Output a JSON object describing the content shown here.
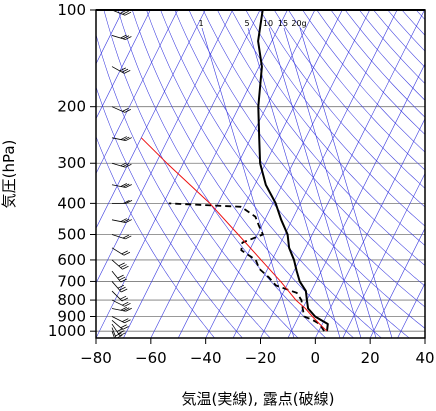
{
  "chart_data": {
    "type": "line",
    "title": "",
    "xlabel": "気温(実線), 露点(破線)",
    "ylabel": "気圧(hPa)",
    "xlim": [
      -80,
      40
    ],
    "ylim": [
      1050,
      100
    ],
    "y_scale": "log",
    "skew": "isotherms slanted",
    "x_ticks": [
      "−80",
      "−60",
      "−40",
      "−20",
      "0",
      "20",
      "40"
    ],
    "y_ticks": [
      "100",
      "200",
      "300",
      "400",
      "500",
      "600",
      "700",
      "800",
      "900",
      "1000"
    ],
    "mixing_ratio_labels": [
      "1",
      "5",
      "10",
      "15",
      "20g"
    ],
    "grid": true,
    "series": [
      {
        "style": "solid-black",
        "points": [
          {
            "p": 1000,
            "t": 3
          },
          {
            "p": 950,
            "t": 2
          },
          {
            "p": 925,
            "t": -1
          },
          {
            "p": 900,
            "t": -4
          },
          {
            "p": 850,
            "t": -8
          },
          {
            "p": 800,
            "t": -10
          },
          {
            "p": 750,
            "t": -12
          },
          {
            "p": 700,
            "t": -16
          },
          {
            "p": 650,
            "t": -19
          },
          {
            "p": 600,
            "t": -22
          },
          {
            "p": 550,
            "t": -26
          },
          {
            "p": 500,
            "t": -29
          },
          {
            "p": 450,
            "t": -34
          },
          {
            "p": 400,
            "t": -39
          },
          {
            "p": 350,
            "t": -46
          },
          {
            "p": 300,
            "t": -52
          },
          {
            "p": 250,
            "t": -57
          },
          {
            "p": 200,
            "t": -63
          },
          {
            "p": 150,
            "t": -69
          },
          {
            "p": 125,
            "t": -75
          },
          {
            "p": 100,
            "t": -79
          }
        ]
      },
      {
        "style": "dashed-black",
        "points": [
          {
            "p": 1000,
            "t": 2
          },
          {
            "p": 950,
            "t": -1
          },
          {
            "p": 925,
            "t": -4
          },
          {
            "p": 900,
            "t": -8
          },
          {
            "p": 850,
            "t": -10
          },
          {
            "p": 800,
            "t": -12
          },
          {
            "p": 760,
            "t": -15
          },
          {
            "p": 720,
            "t": -24
          },
          {
            "p": 680,
            "t": -28
          },
          {
            "p": 640,
            "t": -33
          },
          {
            "p": 600,
            "t": -36
          },
          {
            "p": 560,
            "t": -43
          },
          {
            "p": 530,
            "t": -44
          },
          {
            "p": 500,
            "t": -38
          },
          {
            "p": 470,
            "t": -41
          },
          {
            "p": 440,
            "t": -44
          },
          {
            "p": 410,
            "t": -51
          },
          {
            "p": 400,
            "t": -78
          }
        ]
      },
      {
        "style": "solid-red",
        "points": [
          {
            "p": 1000,
            "t": 3
          },
          {
            "p": 950,
            "t": -1
          },
          {
            "p": 900,
            "t": -5
          },
          {
            "p": 850,
            "t": -9
          },
          {
            "p": 800,
            "t": -14
          },
          {
            "p": 700,
            "t": -23
          },
          {
            "p": 600,
            "t": -34
          },
          {
            "p": 500,
            "t": -47
          },
          {
            "p": 400,
            "t": -63
          },
          {
            "p": 300,
            "t": -86
          },
          {
            "p": 250,
            "t": -100
          }
        ]
      }
    ],
    "wind_barbs": [
      {
        "p": 1000,
        "u": -3,
        "v": 8
      },
      {
        "p": 975,
        "u": -4,
        "v": 10
      },
      {
        "p": 950,
        "u": -6,
        "v": 9
      },
      {
        "p": 925,
        "u": -7,
        "v": 6
      },
      {
        "p": 900,
        "u": -8,
        "v": 4
      },
      {
        "p": 850,
        "u": -10,
        "v": 2
      },
      {
        "p": 800,
        "u": -8,
        "v": 4
      },
      {
        "p": 750,
        "u": -6,
        "v": 6
      },
      {
        "p": 700,
        "u": -7,
        "v": 8
      },
      {
        "p": 650,
        "u": -8,
        "v": 10
      },
      {
        "p": 600,
        "u": -9,
        "v": 8
      },
      {
        "p": 550,
        "u": -8,
        "v": 5
      },
      {
        "p": 500,
        "u": -9,
        "v": 3
      },
      {
        "p": 450,
        "u": -10,
        "v": 2
      },
      {
        "p": 400,
        "u": -9,
        "v": 0
      },
      {
        "p": 350,
        "u": -10,
        "v": 2
      },
      {
        "p": 300,
        "u": -10,
        "v": 3
      },
      {
        "p": 250,
        "u": -10,
        "v": 2
      },
      {
        "p": 200,
        "u": -9,
        "v": 4
      },
      {
        "p": 150,
        "u": -9,
        "v": 5
      },
      {
        "p": 120,
        "u": -10,
        "v": 3
      },
      {
        "p": 100,
        "u": -10,
        "v": 4
      }
    ]
  }
}
